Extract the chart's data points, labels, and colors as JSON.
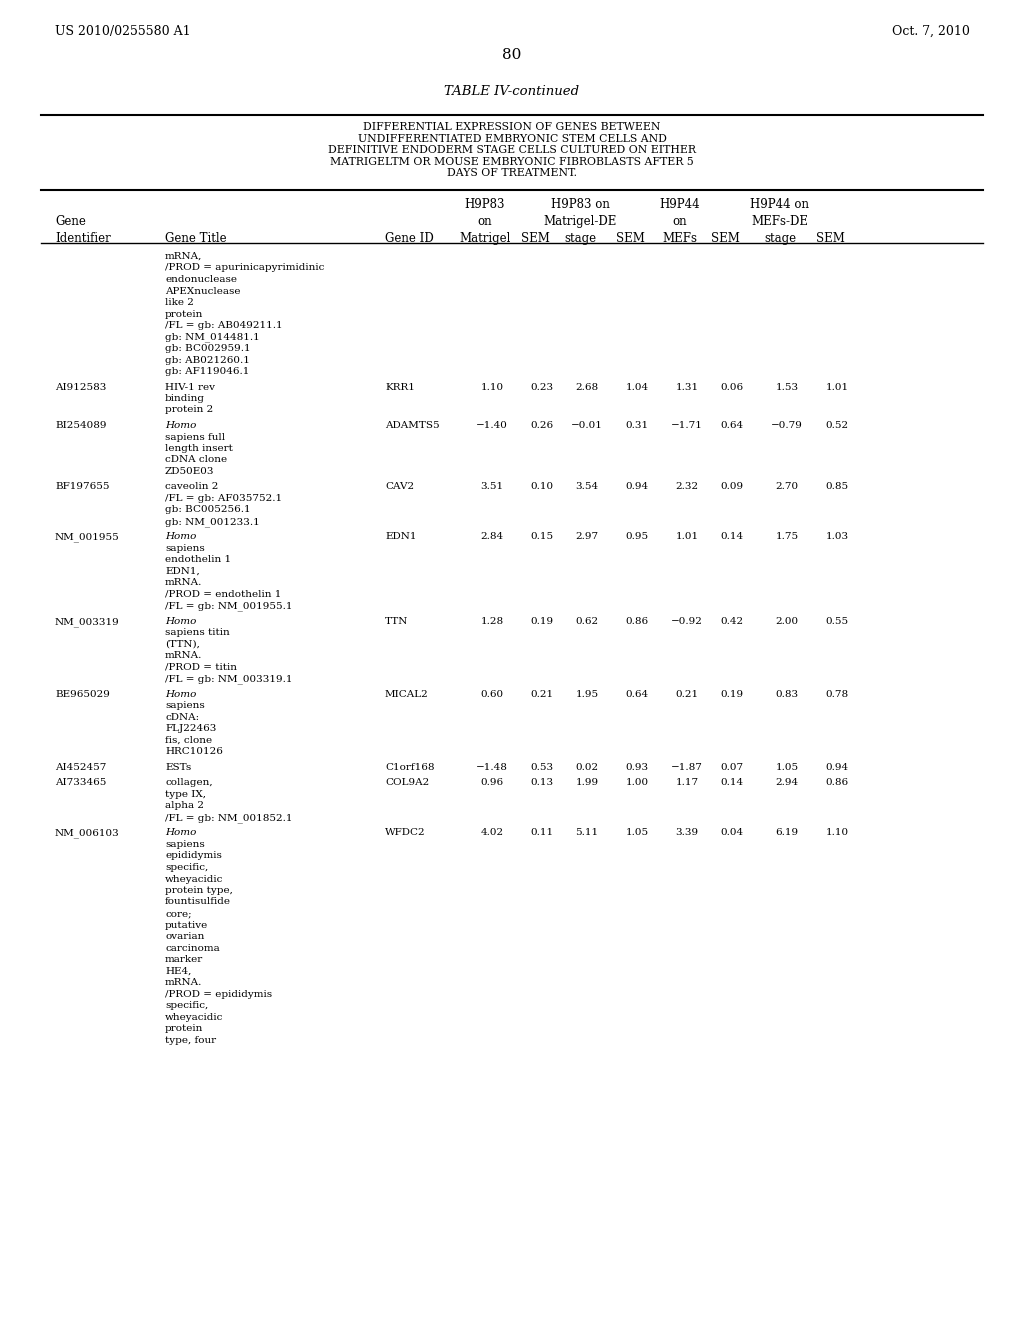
{
  "page_num": "80",
  "patent_left": "US 2010/0255580 A1",
  "patent_right": "Oct. 7, 2010",
  "table_title": "TABLE IV-continued",
  "table_subtitle": "DIFFERENTIAL EXPRESSION OF GENES BETWEEN\nUNDIFFERENTIATED EMBRYONIC STEM CELLS AND\nDEFINITIVE ENDODERM STAGE CELLS CULTURED ON EITHER\nMATRIGELTM OR MOUSE EMBRYONIC FIBROBLASTS AFTER 5\nDAYS OF TREATMENT.",
  "col_headers_line1": [
    "",
    "",
    "",
    "H9P83",
    "",
    "H9P83 on",
    "",
    "H9P44",
    "",
    "H9P44 on",
    ""
  ],
  "col_headers_line2": [
    "Gene",
    "",
    "",
    "on",
    "",
    "Matrigel-DE",
    "",
    "on",
    "",
    "MEFs-DE",
    ""
  ],
  "col_headers_line3": [
    "Identifier",
    "Gene Title",
    "Gene ID",
    "Matrigel",
    "SEM",
    "stage",
    "SEM",
    "MEFs",
    "SEM",
    "stage",
    "SEM"
  ],
  "rows": [
    {
      "id": "",
      "title": "mRNA,\n/PROD = apurinicapyrimidinic\nendonuclease\nAPEXnuclease\nlike 2\nprotein\n/FL = gb: AB049211.1\ngb: NM_014481.1\ngb: BC002959.1\ngb: AB021260.1\ngb: AF119046.1",
      "gene_id": "",
      "v1": "",
      "v2": "",
      "v3": "",
      "v4": "",
      "v5": "",
      "v6": "",
      "v7": "",
      "v8": ""
    },
    {
      "id": "AI912583",
      "title": "HIV-1 rev\nbinding\nprotein 2",
      "gene_id": "KRR1",
      "v1": "1.10",
      "v2": "0.23",
      "v3": "2.68",
      "v4": "1.04",
      "v5": "1.31",
      "v6": "0.06",
      "v7": "1.53",
      "v8": "1.01"
    },
    {
      "id": "BI254089",
      "title": "Homo\nsapiens full\nlength insert\ncDNA clone\nZD50E03",
      "gene_id": "ADAMTS5",
      "v1": "−1.40",
      "v2": "0.26",
      "v3": "−0.01",
      "v4": "0.31",
      "v5": "−1.71",
      "v6": "0.64",
      "v7": "−0.79",
      "v8": "0.52"
    },
    {
      "id": "BF197655",
      "title": "caveolin 2\n/FL = gb: AF035752.1\ngb: BC005256.1\ngb: NM_001233.1",
      "gene_id": "CAV2",
      "v1": "3.51",
      "v2": "0.10",
      "v3": "3.54",
      "v4": "0.94",
      "v5": "2.32",
      "v6": "0.09",
      "v7": "2.70",
      "v8": "0.85"
    },
    {
      "id": "NM_001955",
      "title": "Homo\nsapiens\nendothelin 1\nEDN1,\nmRNA.\n/PROD = endothelin 1\n/FL = gb: NM_001955.1",
      "gene_id": "EDN1",
      "v1": "2.84",
      "v2": "0.15",
      "v3": "2.97",
      "v4": "0.95",
      "v5": "1.01",
      "v6": "0.14",
      "v7": "1.75",
      "v8": "1.03"
    },
    {
      "id": "NM_003319",
      "title": "Homo\nsapiens titin\n(TTN),\nmRNA.\n/PROD = titin\n/FL = gb: NM_003319.1",
      "gene_id": "TTN",
      "v1": "1.28",
      "v2": "0.19",
      "v3": "0.62",
      "v4": "0.86",
      "v5": "−0.92",
      "v6": "0.42",
      "v7": "2.00",
      "v8": "0.55"
    },
    {
      "id": "BE965029",
      "title": "Homo\nsapiens\ncDNA:\nFLJ22463\nfis, clone\nHRC10126",
      "gene_id": "MICAL2",
      "v1": "0.60",
      "v2": "0.21",
      "v3": "1.95",
      "v4": "0.64",
      "v5": "0.21",
      "v6": "0.19",
      "v7": "0.83",
      "v8": "0.78"
    },
    {
      "id": "AI452457",
      "title": "ESTs",
      "gene_id": "C1orf168",
      "v1": "−1.48",
      "v2": "0.53",
      "v3": "0.02",
      "v4": "0.93",
      "v5": "−1.87",
      "v6": "0.07",
      "v7": "1.05",
      "v8": "0.94"
    },
    {
      "id": "AI733465",
      "title": "collagen,\ntype IX,\nalpha 2\n/FL = gb: NM_001852.1",
      "gene_id": "COL9A2",
      "v1": "0.96",
      "v2": "0.13",
      "v3": "1.99",
      "v4": "1.00",
      "v5": "1.17",
      "v6": "0.14",
      "v7": "2.94",
      "v8": "0.86"
    },
    {
      "id": "NM_006103",
      "title": "Homo\nsapiens\nepididymis\nspecific,\nwheyacidic\nprotein type,\nfountisulfide\ncore;\nputative\novarian\ncarcinoma\nmarker\nHE4,\nmRNA.\n/PROD = epididymis\nspecific,\nwheyacidic\nprotein\ntype, four",
      "gene_id": "WFDC2",
      "v1": "4.02",
      "v2": "0.11",
      "v3": "5.11",
      "v4": "1.05",
      "v5": "3.39",
      "v6": "0.04",
      "v7": "6.19",
      "v8": "1.10"
    }
  ]
}
